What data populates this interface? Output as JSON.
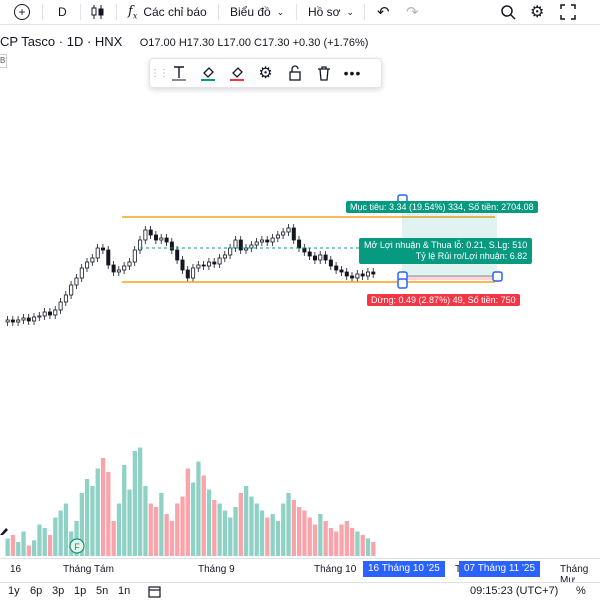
{
  "toolbar": {
    "interval": "D",
    "indicators_label": "Các chỉ báo",
    "chart_label": "Biểu đồ",
    "profile_label": "Hồ sơ"
  },
  "legend": {
    "symbol": "CP Tasco · 1D · HNX",
    "ohlc": "O17.00 H17.30 L17.00 C17.30 +0.30 (+1.76%)"
  },
  "left_tag": "B",
  "position_tool": {
    "target_label": "Mục tiêu: 3.34 (19.54%) 334, Số tiền: 2704.08",
    "pnl_label": "Mở Lợi nhuận & Thua lỗ: 0.21, S.Lg: 510",
    "ratio_label": "Tỷ lệ Rủi ro/Lợi nhuận: 6.82",
    "stop_label": "Dừng: 0.49 (2.87%) 49, Số tiền: 750",
    "target_color": "#089981",
    "stop_color": "#f23645"
  },
  "channel_color": "#f7a21b",
  "dividend_marker": "F",
  "xaxis": {
    "labels": [
      "16",
      "Tháng Tám",
      "Tháng 9",
      "Tháng 10",
      "Tháng Mư"
    ],
    "highlight_start": "16 Tháng 10 '25",
    "highlight_end": "07 Tháng 11 '25",
    "partial": "T"
  },
  "bottombar": {
    "ranges": [
      "1y",
      "6p",
      "3p",
      "1p",
      "5n",
      "1n"
    ],
    "time": "09:15:23 (UTC+7)",
    "percent": "%"
  }
}
